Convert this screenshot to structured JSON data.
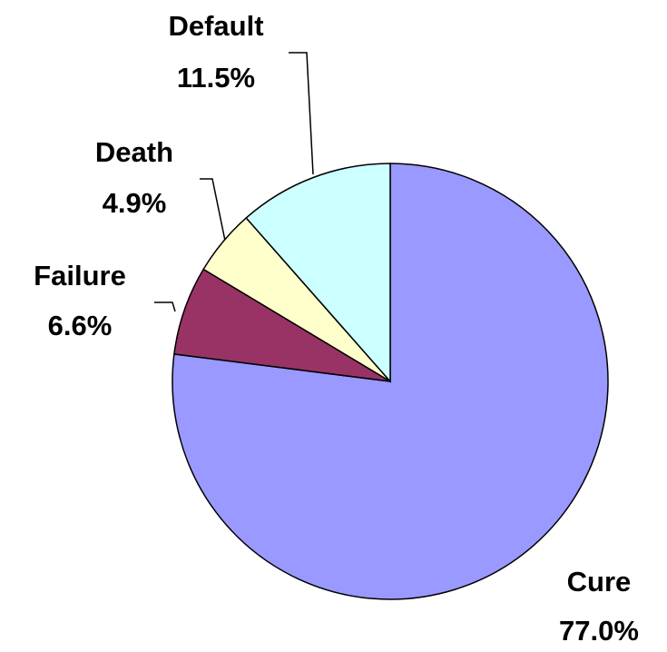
{
  "chart_data": {
    "type": "pie",
    "categories": [
      "Cure",
      "Failure",
      "Death",
      "Default"
    ],
    "values": [
      77.0,
      6.6,
      4.9,
      11.5
    ],
    "value_labels": [
      "77.0%",
      "6.6%",
      "4.9%",
      "11.5%"
    ],
    "colors": [
      "#9999ff",
      "#993366",
      "#ffffcc",
      "#ccffff"
    ]
  }
}
